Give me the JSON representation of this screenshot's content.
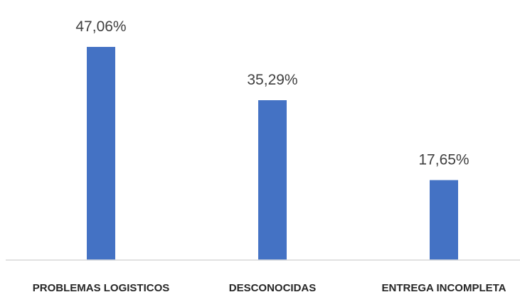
{
  "chart_data": {
    "type": "bar",
    "categories": [
      "PROBLEMAS LOGISTICOS",
      "DESCONOCIDAS",
      "ENTREGA INCOMPLETA"
    ],
    "values": [
      47.06,
      35.29,
      17.65
    ],
    "data_labels": [
      "47,06%",
      "35,29%",
      "17,65%"
    ],
    "title": "",
    "xlabel": "",
    "ylabel": "",
    "ylim": [
      0,
      50
    ],
    "grid": false,
    "legend": "none",
    "colors": {
      "bar": "#4472C4",
      "axis": "#d9d9d9",
      "label": "#404040",
      "tick": "#262626"
    }
  }
}
